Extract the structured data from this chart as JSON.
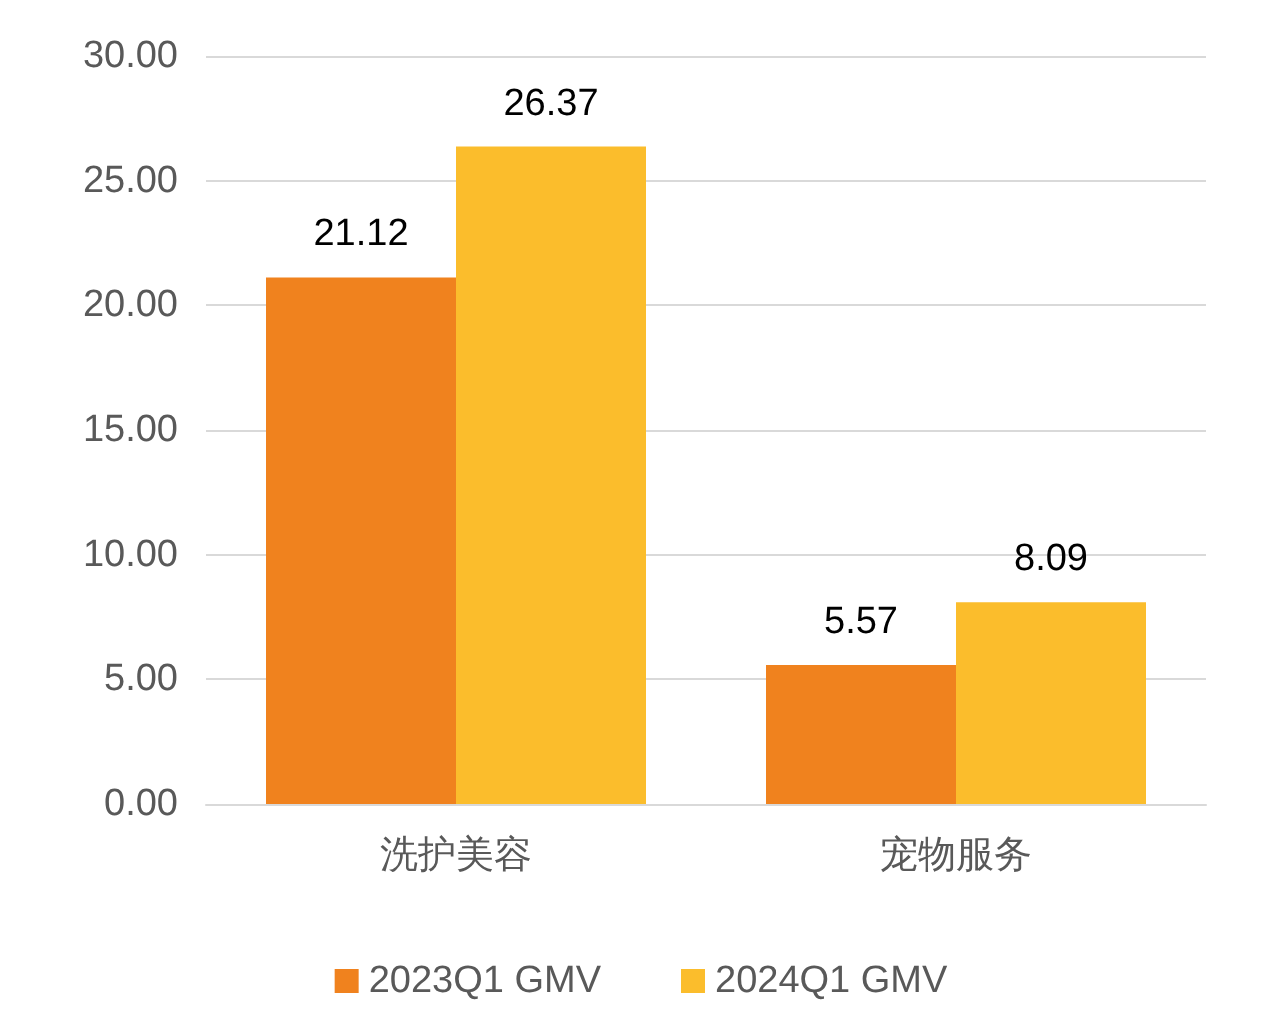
{
  "chart_data": {
    "type": "bar",
    "categories": [
      "洗护美容",
      "宠物服务"
    ],
    "series": [
      {
        "name": "2023Q1 GMV",
        "color": "#f0821e",
        "values": [
          21.12,
          5.57
        ]
      },
      {
        "name": "2024Q1 GMV",
        "color": "#fbbd2c",
        "values": [
          26.37,
          8.09
        ]
      }
    ],
    "ylim": [
      0,
      30
    ],
    "yticks": [
      {
        "value": 0,
        "label": "0.00"
      },
      {
        "value": 5,
        "label": "5.00"
      },
      {
        "value": 10,
        "label": "10.00"
      },
      {
        "value": 15,
        "label": "15.00"
      },
      {
        "value": 20,
        "label": "20.00"
      },
      {
        "value": 25,
        "label": "25.00"
      },
      {
        "value": 30,
        "label": "30.00"
      }
    ],
    "grid": "y",
    "legend": "bottom",
    "data_labels": true
  }
}
